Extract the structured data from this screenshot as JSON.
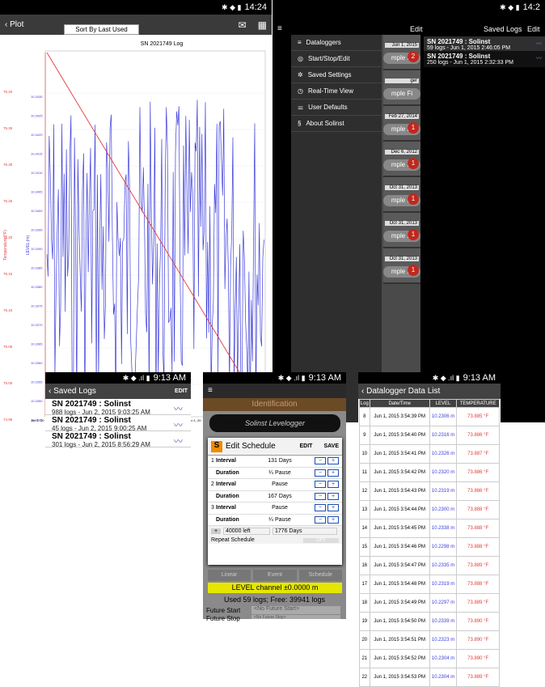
{
  "plot": {
    "back": "Plot",
    "title": "SN 2021749 Log",
    "time": "14:24",
    "ylabel_left": "Temperature (°F)",
    "ylabel_right": "LEVEL (m)",
    "temp_ticks": [
      "75.40",
      "75.35",
      "75.30",
      "75.25",
      "75.20",
      "75.15",
      "75.10",
      "75.05",
      "75.00",
      "74.95"
    ],
    "level_ticks": [
      "10.3435",
      "10.3425",
      "10.3420",
      "10.3415",
      "10.3410",
      "10.3405",
      "10.3400",
      "10.3395",
      "10.3390",
      "10.3385",
      "10.3380",
      "10.3375",
      "10.3370",
      "10.3365",
      "10.3360",
      "10.3355",
      "10.3350",
      "10.3345"
    ],
    "xlabels": [
      "Jun 1, 20",
      "Jun 1, 20"
    ]
  },
  "tablet": {
    "time": "14:2",
    "sort": "Sort By Last Used",
    "edit": "Edit",
    "saved": "Saved Logs",
    "edit2": "Edit",
    "drawer": [
      {
        "icon": "≡",
        "label": "Dataloggers"
      },
      {
        "icon": "◎",
        "label": "Start/Stop/Edit"
      },
      {
        "icon": "✲",
        "label": "Saved Settings"
      },
      {
        "icon": "◷",
        "label": "Real-Time View"
      },
      {
        "icon": "⚌",
        "label": "User Defaults"
      },
      {
        "icon": "§",
        "label": "About Solinst"
      }
    ],
    "logs": [
      {
        "title": "SN 2021749 : Solinst",
        "sub": "59 logs - Jun 1, 2015 2:46:05 PM"
      },
      {
        "title": "SN 2021749 : Solinst",
        "sub": "250 logs - Jun 1, 2015 2:32:33 PM"
      }
    ],
    "cards": [
      {
        "date": "Jun 1, 2015",
        "badge": "2"
      },
      {
        "date": "ger",
        "badge": ""
      },
      {
        "date": "Feb 27, 2014",
        "badge": "1"
      },
      {
        "date": "Dec 6, 2012",
        "badge": "1"
      },
      {
        "date": "Oct 31, 2013",
        "badge": "1"
      },
      {
        "date": "Oct 31, 2013",
        "badge": "1"
      },
      {
        "date": "Oct 31, 2013",
        "badge": "1"
      }
    ],
    "card_text": "mple Fi"
  },
  "phone1": {
    "time": "9:13 AM",
    "title": "Saved Logs",
    "edit": "EDIT",
    "rows": [
      {
        "title": "SN 2021749 : Solinst",
        "sub": "988 logs - Jun 2, 2015 9:03:25 AM"
      },
      {
        "title": "SN 2021749 : Solinst",
        "sub": "45 logs - Jun 2, 2015 9:00:25 AM"
      },
      {
        "title": "SN 2021749 : Solinst",
        "sub": "301 logs - Jun 2, 2015 8:56:29 AM"
      }
    ]
  },
  "phone2": {
    "time": "9:13 AM",
    "ident": "Identification",
    "logger": "Solinst Levelogger",
    "dialog_title": "Edit Schedule",
    "edit": "EDIT",
    "save": "SAVE",
    "rows": [
      {
        "n": "1",
        "k": "Interval",
        "v": "131 Days"
      },
      {
        "n": "",
        "k": "Duration",
        "v": "¼ Pause"
      },
      {
        "n": "2",
        "k": "Interval",
        "v": "Pause"
      },
      {
        "n": "",
        "k": "Duration",
        "v": "167 Days"
      },
      {
        "n": "3",
        "k": "Interval",
        "v": "Pause"
      },
      {
        "n": "",
        "k": "Duration",
        "v": "¼ Pause"
      }
    ],
    "left": "40000 left",
    "total": "1776 Days",
    "repeat": "Repeat Schedule",
    "off": "OFF",
    "tabs": [
      "Linear",
      "Event",
      "Schedule"
    ],
    "level": "LEVEL channel ±0.0000 m",
    "used": "Used 59 logs; Free: 39941 logs",
    "future_start": "Future Start",
    "fs_val": "<No Future Start>",
    "future_stop": "Future Stop",
    "fstop_val": "<No Future Stop>"
  },
  "phone3": {
    "time": "9:13 AM",
    "title": "Datalogger Data List",
    "cols": [
      "Log",
      "Date/Time",
      "LEVEL",
      "TEMPERATURE"
    ],
    "rows": [
      [
        "8",
        "Jun 1, 2015 3:54:39 PM",
        "10.2306 m",
        "73.885 °F"
      ],
      [
        "9",
        "Jun 1, 2015 3:54:40 PM",
        "10.2316 m",
        "73.886 °F"
      ],
      [
        "10",
        "Jun 1, 2015 3:54:41 PM",
        "10.2326 m",
        "73.887 °F"
      ],
      [
        "11",
        "Jun 1, 2015 3:54:42 PM",
        "10.2320 m",
        "73.886 °F"
      ],
      [
        "12",
        "Jun 1, 2015 3:54:43 PM",
        "10.2319 m",
        "73.886 °F"
      ],
      [
        "13",
        "Jun 1, 2015 3:54:44 PM",
        "10.2300 m",
        "73.888 °F"
      ],
      [
        "14",
        "Jun 1, 2015 3:54:45 PM",
        "10.2338 m",
        "73.888 °F"
      ],
      [
        "15",
        "Jun 1, 2015 3:54:46 PM",
        "10.2298 m",
        "73.888 °F"
      ],
      [
        "16",
        "Jun 1, 2015 3:54:47 PM",
        "10.2335 m",
        "73.889 °F"
      ],
      [
        "17",
        "Jun 1, 2015 3:54:48 PM",
        "10.2319 m",
        "73.888 °F"
      ],
      [
        "18",
        "Jun 1, 2015 3:54:49 PM",
        "10.2297 m",
        "73.889 °F"
      ],
      [
        "19",
        "Jun 1, 2015 3:54:50 PM",
        "10.2339 m",
        "73.890 °F"
      ],
      [
        "20",
        "Jun 1, 2015 3:54:51 PM",
        "10.2323 m",
        "73.890 °F"
      ],
      [
        "21",
        "Jun 1, 2015 3:54:52 PM",
        "10.2304 m",
        "73.890 °F"
      ],
      [
        "22",
        "Jun 1, 2015 3:54:53 PM",
        "10.2304 m",
        "73.889 °F"
      ]
    ]
  },
  "colors": {
    "level_series": "#3c3cdc",
    "temp_series": "#e03c3c",
    "accent": "#1a4fb5",
    "badge": "#c0281e"
  }
}
